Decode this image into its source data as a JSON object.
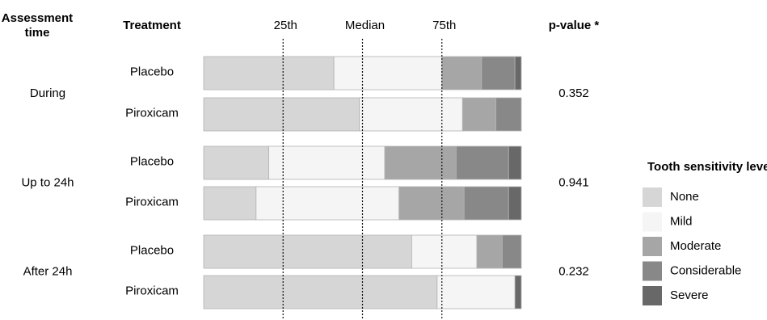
{
  "chart_data": {
    "type": "bar",
    "subtype": "stacked-horizontal-100-percent",
    "headers": {
      "assessment_time": "Assessment time",
      "treatment": "Treatment",
      "p_value": "p-value *"
    },
    "reference_lines": [
      {
        "label": "25th",
        "value": 25
      },
      {
        "label": "Median",
        "value": 50
      },
      {
        "label": "75th",
        "value": 75
      }
    ],
    "xlim": [
      0,
      100
    ],
    "grid": false,
    "legend": {
      "title": "Tooth sensitivity level",
      "position": "right"
    },
    "series": [
      {
        "name": "None",
        "color": "#d6d6d6"
      },
      {
        "name": "Mild",
        "color": "#f5f5f5"
      },
      {
        "name": "Moderate",
        "color": "#a6a6a6"
      },
      {
        "name": "Considerable",
        "color": "#888888"
      },
      {
        "name": "Severe",
        "color": "#686868"
      }
    ],
    "groups": [
      {
        "time": "During",
        "p_value": "0.352",
        "rows": [
          {
            "treatment": "Placebo",
            "values": [
              41,
              34,
              12.5,
              10.5,
              2
            ]
          },
          {
            "treatment": "Piroxicam",
            "values": [
              49,
              32.5,
              10.5,
              8,
              0
            ]
          }
        ]
      },
      {
        "time": "Up to 24h",
        "p_value": "0.941",
        "rows": [
          {
            "treatment": "Placebo",
            "values": [
              20.5,
              36.5,
              22.5,
              16.5,
              4
            ]
          },
          {
            "treatment": "Piroxicam",
            "values": [
              16.5,
              45,
              20.5,
              14,
              4
            ]
          }
        ]
      },
      {
        "time": "After 24h",
        "p_value": "0.232",
        "rows": [
          {
            "treatment": "Placebo",
            "values": [
              65.5,
              20.5,
              8,
              6,
              0
            ]
          },
          {
            "treatment": "Piroxicam",
            "values": [
              73.5,
              24.5,
              0,
              0,
              2
            ]
          }
        ]
      }
    ]
  }
}
